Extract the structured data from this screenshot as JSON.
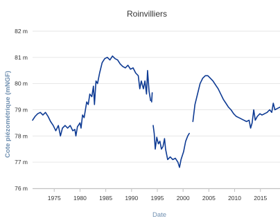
{
  "chart_data": {
    "type": "line",
    "title": "Roinvilliers",
    "xlabel": "Date",
    "ylabel": "Cote piézométrique (mNGF)",
    "xlim": [
      1970.8,
      2018.8
    ],
    "ylim": [
      76,
      82
    ],
    "x_ticks": [
      "1975",
      "1980",
      "1985",
      "1990",
      "1995",
      "2000",
      "2005",
      "2010",
      "2015"
    ],
    "y_ticks": [
      "76 m",
      "77 m",
      "78 m",
      "79 m",
      "80 m",
      "81 m",
      "82 m"
    ],
    "grid": "horizontal",
    "colors": {
      "line": "#0d3a93",
      "grid": "#e6e6e6",
      "axis": "#c0c0c0",
      "title_text": "#333333",
      "axis_title": "#6f8fb0"
    },
    "series": [
      {
        "segments": [
          [
            [
              1970.8,
              78.6
            ],
            [
              1971.3,
              78.75
            ],
            [
              1971.8,
              78.85
            ],
            [
              1972.3,
              78.9
            ],
            [
              1972.8,
              78.8
            ],
            [
              1973.3,
              78.9
            ],
            [
              1973.8,
              78.75
            ],
            [
              1974.3,
              78.55
            ],
            [
              1974.8,
              78.4
            ],
            [
              1975.3,
              78.2
            ],
            [
              1975.8,
              78.4
            ],
            [
              1976.2,
              78.0
            ],
            [
              1976.6,
              78.3
            ],
            [
              1977.1,
              78.4
            ],
            [
              1977.6,
              78.3
            ],
            [
              1978.1,
              78.4
            ],
            [
              1978.6,
              78.2
            ],
            [
              1979.0,
              78.25
            ],
            [
              1979.2,
              78.0
            ],
            [
              1979.5,
              78.35
            ],
            [
              1980.0,
              78.5
            ],
            [
              1980.2,
              78.3
            ],
            [
              1980.5,
              78.8
            ],
            [
              1980.8,
              78.7
            ],
            [
              1981.3,
              79.3
            ],
            [
              1981.6,
              79.2
            ],
            [
              1981.9,
              79.6
            ],
            [
              1982.3,
              79.5
            ],
            [
              1982.6,
              79.9
            ],
            [
              1982.8,
              79.2
            ],
            [
              1983.1,
              80.1
            ],
            [
              1983.4,
              80.0
            ],
            [
              1983.8,
              80.4
            ],
            [
              1984.3,
              80.8
            ],
            [
              1984.8,
              80.95
            ],
            [
              1985.3,
              81.0
            ],
            [
              1985.8,
              80.9
            ],
            [
              1986.3,
              81.05
            ],
            [
              1986.8,
              80.95
            ],
            [
              1987.3,
              80.9
            ],
            [
              1987.8,
              80.75
            ],
            [
              1988.3,
              80.65
            ],
            [
              1988.8,
              80.6
            ],
            [
              1989.3,
              80.7
            ],
            [
              1989.8,
              80.55
            ],
            [
              1990.3,
              80.6
            ],
            [
              1990.8,
              80.4
            ],
            [
              1991.3,
              80.3
            ],
            [
              1991.6,
              79.8
            ],
            [
              1991.9,
              80.1
            ],
            [
              1992.3,
              79.8
            ],
            [
              1992.6,
              80.1
            ],
            [
              1992.9,
              79.6
            ],
            [
              1993.1,
              80.5
            ],
            [
              1993.4,
              79.7
            ],
            [
              1993.7,
              79.35
            ]
          ],
          [
            [
              1993.9,
              79.3
            ],
            [
              1994.0,
              79.65
            ]
          ],
          [
            [
              1994.2,
              78.4
            ],
            [
              1994.4,
              78.1
            ],
            [
              1994.6,
              77.5
            ],
            [
              1994.9,
              77.95
            ],
            [
              1995.2,
              77.7
            ],
            [
              1995.5,
              77.8
            ],
            [
              1995.8,
              77.5
            ],
            [
              1996.1,
              77.6
            ],
            [
              1996.4,
              77.9
            ],
            [
              1996.6,
              77.5
            ],
            [
              1997.0,
              77.1
            ],
            [
              1997.5,
              77.2
            ],
            [
              1998.0,
              77.1
            ],
            [
              1998.5,
              77.15
            ],
            [
              1999.0,
              77.0
            ],
            [
              1999.3,
              76.8
            ],
            [
              1999.6,
              77.1
            ],
            [
              2000.1,
              77.4
            ],
            [
              2000.5,
              77.8
            ],
            [
              2000.9,
              78.0
            ],
            [
              2001.2,
              78.1
            ]
          ],
          [
            [
              2001.9,
              78.55
            ],
            [
              2002.3,
              79.2
            ],
            [
              2002.8,
              79.6
            ],
            [
              2003.3,
              80.0
            ],
            [
              2003.8,
              80.2
            ],
            [
              2004.3,
              80.3
            ],
            [
              2004.8,
              80.3
            ],
            [
              2005.3,
              80.2
            ],
            [
              2005.8,
              80.1
            ],
            [
              2006.3,
              79.95
            ],
            [
              2006.8,
              79.8
            ],
            [
              2007.3,
              79.6
            ],
            [
              2007.8,
              79.4
            ],
            [
              2008.3,
              79.25
            ],
            [
              2008.8,
              79.1
            ],
            [
              2009.3,
              79.0
            ],
            [
              2009.8,
              78.85
            ],
            [
              2010.3,
              78.75
            ],
            [
              2010.8,
              78.7
            ],
            [
              2011.3,
              78.65
            ],
            [
              2011.8,
              78.6
            ],
            [
              2012.3,
              78.55
            ],
            [
              2012.8,
              78.6
            ],
            [
              2013.1,
              78.3
            ],
            [
              2013.4,
              78.5
            ],
            [
              2013.7,
              79.0
            ],
            [
              2014.0,
              78.6
            ],
            [
              2014.4,
              78.75
            ],
            [
              2014.9,
              78.85
            ],
            [
              2015.3,
              78.8
            ],
            [
              2015.8,
              78.85
            ],
            [
              2016.3,
              78.9
            ],
            [
              2016.8,
              79.0
            ],
            [
              2017.2,
              78.9
            ],
            [
              2017.5,
              79.25
            ],
            [
              2017.8,
              79.0
            ],
            [
              2018.3,
              79.05
            ],
            [
              2018.8,
              79.1
            ]
          ]
        ]
      }
    ]
  }
}
